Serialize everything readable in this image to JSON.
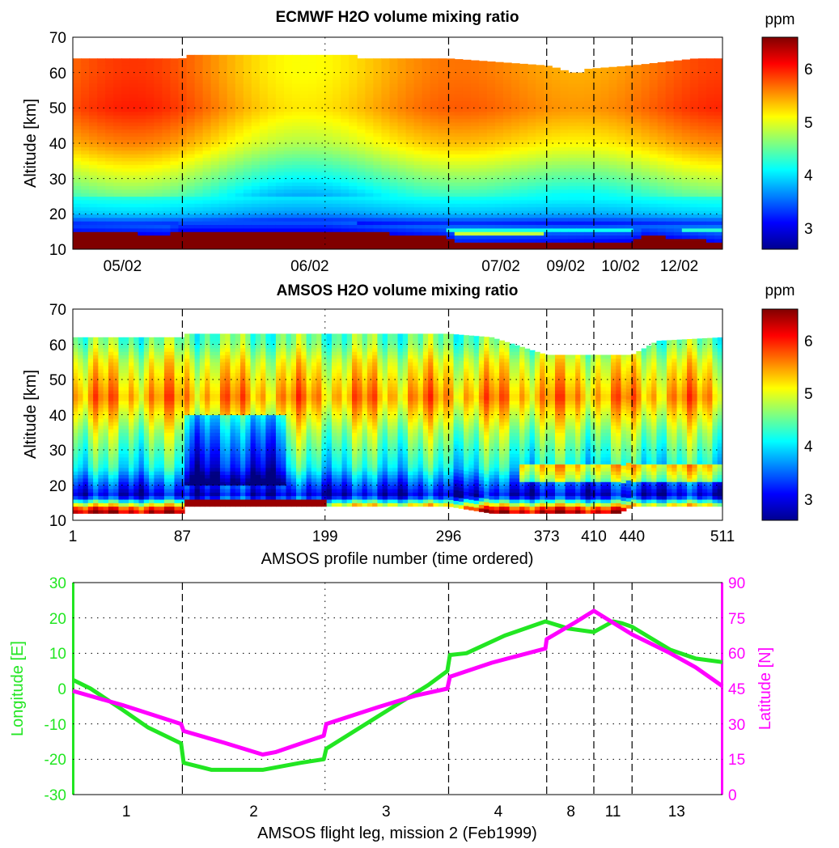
{
  "figure": {
    "panel_top": {
      "title": "ECMWF H2O volume mixing ratio",
      "ylabel": "Altitude [km]",
      "yticks": [
        "10",
        "20",
        "30",
        "40",
        "50",
        "60",
        "70"
      ],
      "ylim": [
        10,
        70
      ],
      "xtick_labels": [
        "05/02",
        "06/02",
        "07/02",
        "09/02",
        "10/02",
        "12/02"
      ],
      "colorbar_unit": "ppm",
      "colorbar_ticks": [
        "3",
        "4",
        "5",
        "6"
      ]
    },
    "panel_mid": {
      "title": "AMSOS H2O volume mixing ratio",
      "ylabel": "Altitude [km]",
      "yticks": [
        "10",
        "20",
        "30",
        "40",
        "50",
        "60",
        "70"
      ],
      "ylim": [
        10,
        70
      ],
      "xticks": [
        "1",
        "87",
        "199",
        "296",
        "373",
        "410",
        "440",
        "511"
      ],
      "xlabel": "AMSOS profile number (time ordered)",
      "colorbar_unit": "ppm",
      "colorbar_ticks": [
        "3",
        "4",
        "5",
        "6"
      ]
    },
    "panel_bottom": {
      "ylabel_left": "Longitude [E]",
      "ylabel_right": "Latitude [N]",
      "yticks_left": [
        "-30",
        "-20",
        "-10",
        "0",
        "10",
        "20",
        "30"
      ],
      "yticks_right": [
        "0",
        "15",
        "30",
        "45",
        "60",
        "75",
        "90"
      ],
      "xtick_labels": [
        "1",
        "2",
        "3",
        "4",
        "8",
        "11",
        "13"
      ],
      "xlabel": "AMSOS flight leg, mission 2 (Feb1999)",
      "colors": {
        "longitude": "#22e622",
        "latitude": "#ff00ff"
      }
    }
  },
  "chart_data": [
    {
      "type": "heatmap",
      "title": "ECMWF H2O volume mixing ratio",
      "ylabel": "Altitude [km]",
      "ylim": [
        10,
        70
      ],
      "xlim": [
        1,
        511
      ],
      "colorbar": {
        "label": "ppm",
        "range": [
          2.5,
          6.5
        ],
        "colormap": "jet"
      },
      "date_ticks": [
        {
          "label": "05/02",
          "profile": 40
        },
        {
          "label": "06/02",
          "profile": 187
        },
        {
          "label": "07/02",
          "profile": 337
        },
        {
          "label": "09/02",
          "profile": 388
        },
        {
          "label": "10/02",
          "profile": 431
        },
        {
          "label": "12/02",
          "profile": 477
        }
      ],
      "top_altitude": [
        [
          1,
          64
        ],
        [
          87,
          64
        ],
        [
          88,
          65
        ],
        [
          225,
          65
        ],
        [
          226,
          64
        ],
        [
          296,
          64
        ],
        [
          373,
          62
        ],
        [
          385,
          61
        ],
        [
          390,
          60
        ],
        [
          400,
          60
        ],
        [
          403,
          61
        ],
        [
          440,
          62
        ],
        [
          490,
          64
        ],
        [
          511,
          64
        ]
      ],
      "tropopause_top_altitude": [
        [
          1,
          15
        ],
        [
          75,
          14.3
        ],
        [
          87,
          15.5
        ],
        [
          199,
          15.5
        ],
        [
          296,
          13.5
        ],
        [
          300,
          11.5
        ],
        [
          440,
          12.5
        ],
        [
          450,
          14
        ],
        [
          480,
          13
        ],
        [
          511,
          12
        ]
      ],
      "profile_levels": [
        {
          "altitude": 12,
          "value": 6.5
        },
        {
          "altitude": 17,
          "value": 3.0
        },
        {
          "altitude": 20,
          "value": 3.7
        },
        {
          "altitude": 30,
          "value": 4.4
        },
        {
          "altitude": 40,
          "value": 5.1
        },
        {
          "altitude": 50,
          "value": 5.5
        },
        {
          "altitude": 60,
          "value": 5.4
        }
      ]
    },
    {
      "type": "heatmap",
      "title": "AMSOS H2O volume mixing ratio",
      "xlabel": "AMSOS profile number (time ordered)",
      "ylabel": "Altitude [km]",
      "ylim": [
        10,
        70
      ],
      "xlim": [
        1,
        511
      ],
      "xticks": [
        1,
        87,
        199,
        296,
        373,
        410,
        440,
        511
      ],
      "colorbar": {
        "label": "ppm",
        "range": [
          2.5,
          6.5
        ],
        "colormap": "jet"
      },
      "top_altitude": [
        [
          1,
          62
        ],
        [
          87,
          62
        ],
        [
          88,
          63
        ],
        [
          296,
          63
        ],
        [
          330,
          62
        ],
        [
          373,
          57
        ],
        [
          410,
          57
        ],
        [
          440,
          57
        ],
        [
          460,
          61
        ],
        [
          511,
          62
        ]
      ],
      "bottom_altitude": [
        [
          1,
          12
        ],
        [
          87,
          12
        ],
        [
          90,
          14
        ],
        [
          199,
          14
        ],
        [
          296,
          14
        ],
        [
          330,
          12
        ],
        [
          430,
          12
        ],
        [
          440,
          14
        ],
        [
          511,
          14
        ]
      ],
      "profile_levels": [
        {
          "altitude": 13,
          "value": 6.2
        },
        {
          "altitude": 17,
          "value": 2.8
        },
        {
          "altitude": 25,
          "value": 4.0
        },
        {
          "altitude": 35,
          "value": 4.6
        },
        {
          "altitude": 45,
          "value": 5.4
        },
        {
          "altitude": 55,
          "value": 4.9
        },
        {
          "altitude": 61,
          "value": 4.4
        }
      ],
      "dry_region_profiles": [
        87,
        170
      ],
      "moist_layer_23km_profiles": [
        350,
        511
      ]
    },
    {
      "type": "line",
      "xlabel": "AMSOS flight leg, mission 2 (Feb1999)",
      "xlim": [
        1,
        511
      ],
      "xticks_profile": [
        1,
        87,
        199,
        296,
        373,
        410,
        440,
        511
      ],
      "leg_labels": [
        {
          "label": "1",
          "profile": 43
        },
        {
          "label": "2",
          "profile": 143
        },
        {
          "label": "3",
          "profile": 247
        },
        {
          "label": "4",
          "profile": 335
        },
        {
          "label": "8",
          "profile": 392
        },
        {
          "label": "11",
          "profile": 425
        },
        {
          "label": "13",
          "profile": 475
        }
      ],
      "series": [
        {
          "name": "Longitude [E]",
          "axis": "left",
          "ylim": [
            -30,
            30
          ],
          "points": [
            [
              1,
              2.5
            ],
            [
              15,
              0
            ],
            [
              40,
              -6
            ],
            [
              60,
              -11
            ],
            [
              86,
              -15.5
            ],
            [
              88,
              -21
            ],
            [
              110,
              -23
            ],
            [
              150,
              -23
            ],
            [
              180,
              -21
            ],
            [
              198,
              -20
            ],
            [
              200,
              -17
            ],
            [
              240,
              -8
            ],
            [
              280,
              1
            ],
            [
              295,
              5
            ],
            [
              297,
              9.5
            ],
            [
              310,
              10
            ],
            [
              340,
              15
            ],
            [
              372,
              19
            ],
            [
              390,
              17
            ],
            [
              410,
              16
            ],
            [
              425,
              19
            ],
            [
              432,
              18.5
            ],
            [
              440,
              17.5
            ],
            [
              470,
              11
            ],
            [
              490,
              8.5
            ],
            [
              511,
              7.5
            ]
          ]
        },
        {
          "name": "Latitude [N]",
          "axis": "right",
          "ylim": [
            0,
            90
          ],
          "points": [
            [
              1,
              44
            ],
            [
              40,
              38
            ],
            [
              86,
              30
            ],
            [
              88,
              27
            ],
            [
              120,
              22
            ],
            [
              150,
              17
            ],
            [
              160,
              18
            ],
            [
              198,
              25
            ],
            [
              200,
              30
            ],
            [
              240,
              37
            ],
            [
              270,
              42
            ],
            [
              295,
              45
            ],
            [
              297,
              50
            ],
            [
              330,
              56
            ],
            [
              372,
              62
            ],
            [
              373,
              66
            ],
            [
              395,
              73
            ],
            [
              410,
              78
            ],
            [
              425,
              73
            ],
            [
              440,
              68
            ],
            [
              470,
              60
            ],
            [
              490,
              54
            ],
            [
              511,
              46
            ]
          ]
        }
      ]
    }
  ]
}
